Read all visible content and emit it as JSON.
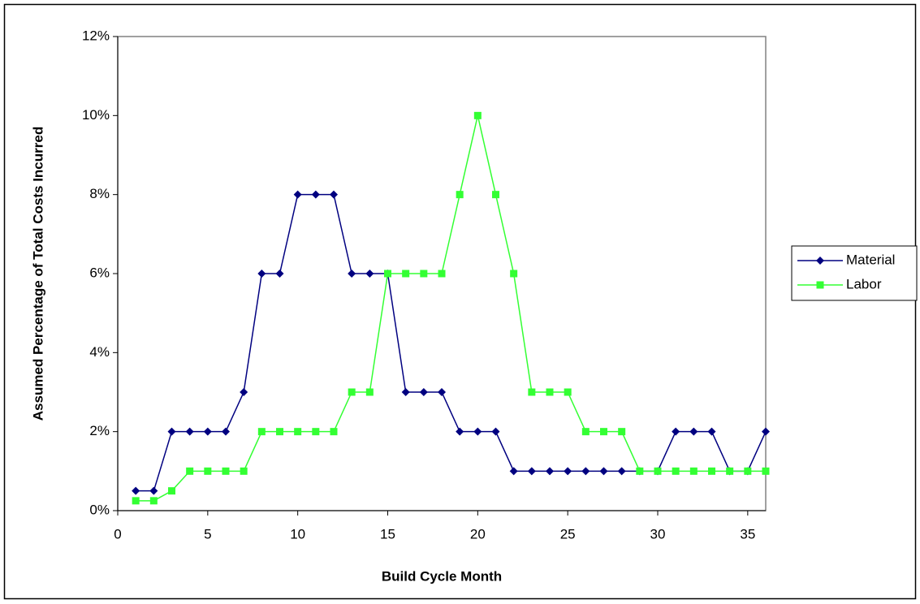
{
  "chart_data": {
    "type": "line",
    "xlabel": "Build Cycle Month",
    "ylabel": "Assumed Percentage of Total Costs Incurred",
    "x": [
      1,
      2,
      3,
      4,
      5,
      6,
      7,
      8,
      9,
      10,
      11,
      12,
      13,
      14,
      15,
      16,
      17,
      18,
      19,
      20,
      21,
      22,
      23,
      24,
      25,
      26,
      27,
      28,
      29,
      30,
      31,
      32,
      33,
      34,
      35,
      36
    ],
    "series": [
      {
        "name": "Material",
        "color": "#000080",
        "marker": "diamond",
        "values": [
          0.5,
          0.5,
          2,
          2,
          2,
          2,
          3,
          6,
          6,
          8,
          8,
          8,
          6,
          6,
          6,
          3,
          3,
          3,
          2,
          2,
          2,
          1,
          1,
          1,
          1,
          1,
          1,
          1,
          1,
          1,
          2,
          2,
          2,
          1,
          1,
          2
        ]
      },
      {
        "name": "Labor",
        "color": "#33ff33",
        "marker": "square",
        "values": [
          0.25,
          0.25,
          0.5,
          1,
          1,
          1,
          1,
          2,
          2,
          2,
          2,
          2,
          3,
          3,
          6,
          6,
          6,
          6,
          8,
          10,
          8,
          6,
          3,
          3,
          3,
          2,
          2,
          2,
          1,
          1,
          1,
          1,
          1,
          1,
          1,
          1
        ]
      }
    ],
    "xlim": [
      0,
      36
    ],
    "xticks": [
      0,
      5,
      10,
      15,
      20,
      25,
      30,
      35
    ],
    "ylim": [
      0,
      12
    ],
    "yticks": [
      {
        "value": 0,
        "label": "0%"
      },
      {
        "value": 2,
        "label": "2%"
      },
      {
        "value": 4,
        "label": "4%"
      },
      {
        "value": 6,
        "label": "6%"
      },
      {
        "value": 8,
        "label": "8%"
      },
      {
        "value": 10,
        "label": "10%"
      },
      {
        "value": 12,
        "label": "12%"
      }
    ],
    "grid": false,
    "legend": "right"
  }
}
